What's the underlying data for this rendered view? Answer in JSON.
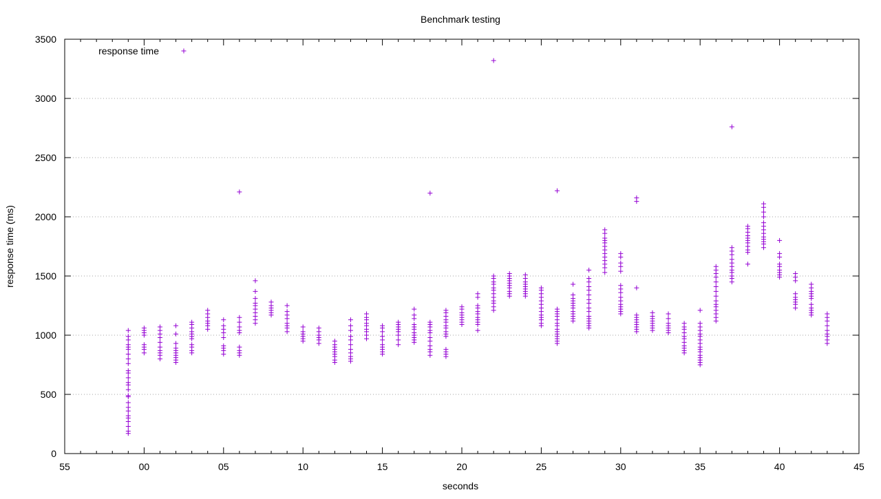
{
  "chart_data": {
    "type": "scatter",
    "title": "Benchmark testing",
    "xlabel": "seconds",
    "ylabel": "response time (ms)",
    "x_axis": {
      "kind": "time-seconds-wrapping",
      "range_seconds": [
        55,
        105
      ],
      "tick_labels": [
        "55",
        "00",
        "05",
        "10",
        "15",
        "20",
        "25",
        "30",
        "35",
        "40",
        "45"
      ]
    },
    "y_axis": {
      "range": [
        0,
        3500
      ],
      "ticks": [
        0,
        500,
        1000,
        1500,
        2000,
        2500,
        3000,
        3500
      ]
    },
    "grid": {
      "horizontal": true,
      "vertical": false,
      "style": "dotted"
    },
    "legend": {
      "placement": "top-left",
      "entries": [
        "response time"
      ]
    },
    "marker_color": "#9400d3",
    "marker": "plus",
    "series": [
      {
        "name": "response time",
        "points": [
          {
            "x": 59,
            "y": [
              170,
              190,
              230,
              270,
              300,
              320,
              360,
              390,
              430,
              480,
              490,
              540,
              580,
              600,
              640,
              680,
              700,
              760,
              800,
              840,
              880,
              900,
              920,
              960,
              990,
              1040
            ]
          },
          {
            "x": 60,
            "y": [
              850,
              880,
              900,
              920,
              1000,
              1020,
              1040,
              1060
            ]
          },
          {
            "x": 61,
            "y": [
              800,
              830,
              850,
              870,
              900,
              940,
              980,
              1010,
              1040,
              1070
            ]
          },
          {
            "x": 62,
            "y": [
              770,
              790,
              810,
              830,
              850,
              870,
              890,
              930,
              1010,
              1080
            ]
          },
          {
            "x": 63,
            "y": [
              850,
              870,
              900,
              920,
              970,
              990,
              1010,
              1030,
              1060,
              1090,
              1110
            ]
          },
          {
            "x": 64,
            "y": [
              1050,
              1080,
              1100,
              1120,
              1150,
              1180,
              1210
            ]
          },
          {
            "x": 65,
            "y": [
              840,
              870,
              890,
              910,
              980,
              1020,
              1050,
              1080,
              1130
            ]
          },
          {
            "x": 66,
            "y": [
              830,
              850,
              870,
              900,
              1020,
              1040,
              1070,
              1110,
              1150,
              2210
            ]
          },
          {
            "x": 67,
            "y": [
              1100,
              1130,
              1160,
              1190,
              1220,
              1250,
              1270,
              1310,
              1370,
              1460
            ]
          },
          {
            "x": 68,
            "y": [
              1170,
              1190,
              1210,
              1230,
              1250,
              1280
            ]
          },
          {
            "x": 69,
            "y": [
              1030,
              1060,
              1080,
              1100,
              1140,
              1170,
              1200,
              1250
            ]
          },
          {
            "x": 70,
            "y": [
              950,
              970,
              990,
              1010,
              1030,
              1070
            ]
          },
          {
            "x": 71,
            "y": [
              930,
              960,
              980,
              1000,
              1030,
              1060
            ]
          },
          {
            "x": 72,
            "y": [
              770,
              790,
              820,
              840,
              860,
              880,
              900,
              920,
              950
            ]
          },
          {
            "x": 73,
            "y": [
              780,
              800,
              820,
              850,
              880,
              920,
              960,
              990,
              1040,
              1080,
              1130
            ]
          },
          {
            "x": 74,
            "y": [
              970,
              1000,
              1030,
              1050,
              1080,
              1100,
              1130,
              1150,
              1180
            ]
          },
          {
            "x": 75,
            "y": [
              840,
              860,
              880,
              900,
              920,
              960,
              990,
              1030,
              1060,
              1080
            ]
          },
          {
            "x": 76,
            "y": [
              920,
              960,
              1000,
              1030,
              1050,
              1070,
              1090,
              1110
            ]
          },
          {
            "x": 77,
            "y": [
              940,
              960,
              980,
              1000,
              1020,
              1050,
              1070,
              1090,
              1140,
              1170,
              1220
            ]
          },
          {
            "x": 78,
            "y": [
              830,
              860,
              880,
              910,
              950,
              980,
              1020,
              1040,
              1070,
              1090,
              1110,
              2200
            ]
          },
          {
            "x": 79,
            "y": [
              820,
              840,
              860,
              880,
              990,
              1010,
              1030,
              1060,
              1080,
              1110,
              1130,
              1160,
              1190,
              1210
            ]
          },
          {
            "x": 80,
            "y": [
              1090,
              1110,
              1130,
              1150,
              1170,
              1190,
              1220,
              1240
            ]
          },
          {
            "x": 81,
            "y": [
              1040,
              1090,
              1110,
              1130,
              1150,
              1180,
              1200,
              1230,
              1250,
              1320,
              1350
            ]
          },
          {
            "x": 82,
            "y": [
              1210,
              1240,
              1270,
              1290,
              1320,
              1350,
              1380,
              1400,
              1430,
              1450,
              1480,
              1500,
              3320
            ]
          },
          {
            "x": 83,
            "y": [
              1330,
              1350,
              1370,
              1400,
              1420,
              1440,
              1460,
              1480,
              1500,
              1520
            ]
          },
          {
            "x": 84,
            "y": [
              1330,
              1350,
              1370,
              1390,
              1410,
              1430,
              1450,
              1480,
              1510
            ]
          },
          {
            "x": 85,
            "y": [
              1080,
              1100,
              1130,
              1150,
              1170,
              1200,
              1230,
              1260,
              1290,
              1320,
              1350,
              1380,
              1400
            ]
          },
          {
            "x": 86,
            "y": [
              930,
              950,
              970,
              990,
              1010,
              1030,
              1050,
              1080,
              1100,
              1130,
              1160,
              1180,
              1200,
              1220,
              2220
            ]
          },
          {
            "x": 87,
            "y": [
              1120,
              1140,
              1160,
              1180,
              1200,
              1230,
              1250,
              1270,
              1290,
              1310,
              1340,
              1430
            ]
          },
          {
            "x": 88,
            "y": [
              1060,
              1080,
              1100,
              1120,
              1140,
              1160,
              1200,
              1230,
              1270,
              1300,
              1340,
              1380,
              1410,
              1450,
              1480,
              1550
            ]
          },
          {
            "x": 89,
            "y": [
              1530,
              1570,
              1600,
              1630,
              1660,
              1690,
              1720,
              1750,
              1780,
              1800,
              1820,
              1860,
              1890
            ]
          },
          {
            "x": 90,
            "y": [
              1180,
              1200,
              1220,
              1240,
              1260,
              1290,
              1320,
              1360,
              1390,
              1420,
              1540,
              1580,
              1610,
              1660,
              1690
            ]
          },
          {
            "x": 91,
            "y": [
              1030,
              1050,
              1070,
              1090,
              1110,
              1130,
              1150,
              1170,
              1400,
              2130,
              2160
            ]
          },
          {
            "x": 92,
            "y": [
              1040,
              1060,
              1080,
              1100,
              1120,
              1140,
              1160,
              1190
            ]
          },
          {
            "x": 93,
            "y": [
              1020,
              1040,
              1060,
              1080,
              1100,
              1140,
              1180
            ]
          },
          {
            "x": 94,
            "y": [
              850,
              870,
              890,
              910,
              940,
              970,
              990,
              1020,
              1050,
              1070,
              1100
            ]
          },
          {
            "x": 95,
            "y": [
              750,
              770,
              790,
              810,
              830,
              860,
              880,
              900,
              930,
              960,
              990,
              1010,
              1040,
              1070,
              1100,
              1210
            ]
          },
          {
            "x": 96,
            "y": [
              1120,
              1150,
              1180,
              1210,
              1240,
              1260,
              1290,
              1330,
              1370,
              1410,
              1450,
              1490,
              1520,
              1550,
              1580
            ]
          },
          {
            "x": 97,
            "y": [
              1450,
              1480,
              1500,
              1530,
              1550,
              1580,
              1610,
              1640,
              1680,
              1710,
              1740,
              2760
            ]
          },
          {
            "x": 98,
            "y": [
              1600,
              1700,
              1720,
              1750,
              1780,
              1800,
              1820,
              1840,
              1870,
              1900,
              1920
            ]
          },
          {
            "x": 99,
            "y": [
              1740,
              1770,
              1790,
              1810,
              1830,
              1860,
              1890,
              1920,
              1950,
              2000,
              2040,
              2080,
              2110
            ]
          },
          {
            "x": 100,
            "y": [
              1490,
              1510,
              1530,
              1550,
              1580,
              1600,
              1660,
              1690,
              1800
            ]
          },
          {
            "x": 101,
            "y": [
              1230,
              1260,
              1280,
              1300,
              1320,
              1350,
              1460,
              1490,
              1520
            ]
          },
          {
            "x": 102,
            "y": [
              1170,
              1190,
              1210,
              1230,
              1260,
              1310,
              1330,
              1350,
              1370,
              1400,
              1430
            ]
          },
          {
            "x": 103,
            "y": [
              930,
              960,
              990,
              1010,
              1040,
              1080,
              1120,
              1150,
              1180
            ]
          }
        ]
      }
    ]
  }
}
